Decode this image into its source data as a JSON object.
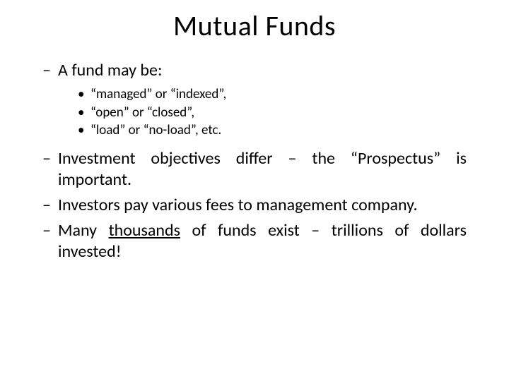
{
  "title": "Mutual Funds",
  "items": {
    "l1_0": "A fund may be:",
    "l2_0": "“managed” or “indexed”,",
    "l2_1": " “open” or “closed”,",
    "l2_2": "“load” or “no-load”, etc.",
    "l1_1_a": "Investment objectives differ – the “Prospectus” is important.",
    "l1_2_a": "Investors pay various fees to management company.",
    "l1_3_a": "Many ",
    "l1_3_u": "thousands",
    "l1_3_b": " of funds exist – trillions of dollars invested!"
  },
  "glyphs": {
    "dash": "–",
    "bullet": "•"
  },
  "style": {
    "background": "#ffffff",
    "text_color": "#000000",
    "title_fontsize": 40,
    "level1_fontsize": 24,
    "level2_fontsize": 19,
    "font_family": "Calibri"
  }
}
